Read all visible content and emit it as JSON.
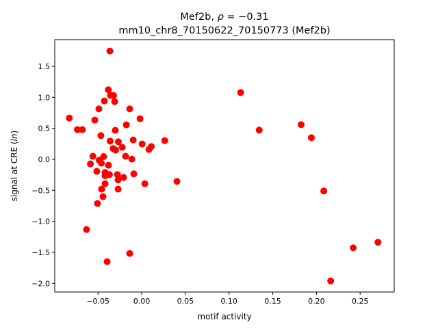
{
  "chart_data": {
    "type": "scatter",
    "title_line1_prefix": "Mef2b, ",
    "title_rho_symbol": "ρ",
    "title_rho_value": " = −0.31",
    "title_line2": "mm10_chr8_70150622_70150773 (Mef2b)",
    "xlabel": "motif activity",
    "ylabel_prefix": "signal at CRE (",
    "ylabel_italic": "ln",
    "ylabel_suffix": ")",
    "xlim": [
      -0.0995,
      0.289
    ],
    "ylim": [
      -2.14,
      1.93
    ],
    "xticks": [
      -0.05,
      0.0,
      0.05,
      0.1,
      0.15,
      0.2,
      0.25
    ],
    "xtick_labels": [
      "−0.05",
      "0.00",
      "0.05",
      "0.10",
      "0.15",
      "0.20",
      "0.25"
    ],
    "yticks": [
      -2.0,
      -1.5,
      -1.0,
      -0.5,
      0.0,
      0.5,
      1.0,
      1.5
    ],
    "ytick_labels": [
      "−2.0",
      "−1.5",
      "−1.0",
      "−0.5",
      "0.0",
      "0.5",
      "1.0",
      "1.5"
    ],
    "grid": false,
    "marker_color": "#ff0000",
    "points": [
      [
        -0.0364,
        1.747
      ],
      [
        -0.0382,
        1.122
      ],
      [
        -0.0357,
        1.03
      ],
      [
        -0.0322,
        1.03
      ],
      [
        -0.0427,
        0.942
      ],
      [
        -0.0309,
        0.931
      ],
      [
        -0.049,
        0.813
      ],
      [
        -0.0137,
        0.813
      ],
      [
        -0.0828,
        0.666
      ],
      [
        -0.0537,
        0.633
      ],
      [
        -0.0019,
        0.655
      ],
      [
        -0.0736,
        0.479
      ],
      [
        -0.0679,
        0.479
      ],
      [
        -0.0176,
        0.556
      ],
      [
        -0.0302,
        0.468
      ],
      [
        -0.0467,
        0.383
      ],
      [
        -0.0361,
        0.294
      ],
      [
        -0.0267,
        0.283
      ],
      [
        -0.0097,
        0.313
      ],
      [
        0.0005,
        0.247
      ],
      [
        0.0264,
        0.302
      ],
      [
        -0.0327,
        0.174
      ],
      [
        -0.0298,
        0.148
      ],
      [
        -0.0223,
        0.195
      ],
      [
        0.011,
        0.206
      ],
      [
        0.0083,
        0.159
      ],
      [
        -0.0184,
        0.049
      ],
      [
        -0.0113,
        0.004
      ],
      [
        -0.0558,
        0.049
      ],
      [
        -0.0435,
        0.044
      ],
      [
        -0.0487,
        -0.014
      ],
      [
        -0.0461,
        -0.062
      ],
      [
        -0.0587,
        -0.073
      ],
      [
        -0.038,
        -0.095
      ],
      [
        -0.0514,
        -0.194
      ],
      [
        -0.0419,
        -0.213
      ],
      [
        -0.0419,
        -0.265
      ],
      [
        -0.0369,
        -0.246
      ],
      [
        -0.0278,
        -0.246
      ],
      [
        -0.0207,
        -0.293
      ],
      [
        -0.009,
        -0.235
      ],
      [
        -0.027,
        -0.331
      ],
      [
        -0.0419,
        -0.393
      ],
      [
        0.0036,
        -0.393
      ],
      [
        -0.0459,
        -0.481
      ],
      [
        -0.027,
        -0.481
      ],
      [
        -0.0443,
        -0.602
      ],
      [
        -0.0506,
        -0.712
      ],
      [
        -0.0631,
        -1.132
      ],
      [
        -0.0137,
        -1.518
      ],
      [
        -0.0396,
        -1.65
      ],
      [
        0.0403,
        -0.356
      ],
      [
        0.1133,
        1.078
      ],
      [
        0.1345,
        0.471
      ],
      [
        0.1825,
        0.559
      ],
      [
        0.1942,
        0.349
      ],
      [
        0.2084,
        -0.511
      ],
      [
        0.2421,
        -1.427
      ],
      [
        0.2704,
        -1.338
      ],
      [
        0.2163,
        -1.961
      ]
    ]
  }
}
